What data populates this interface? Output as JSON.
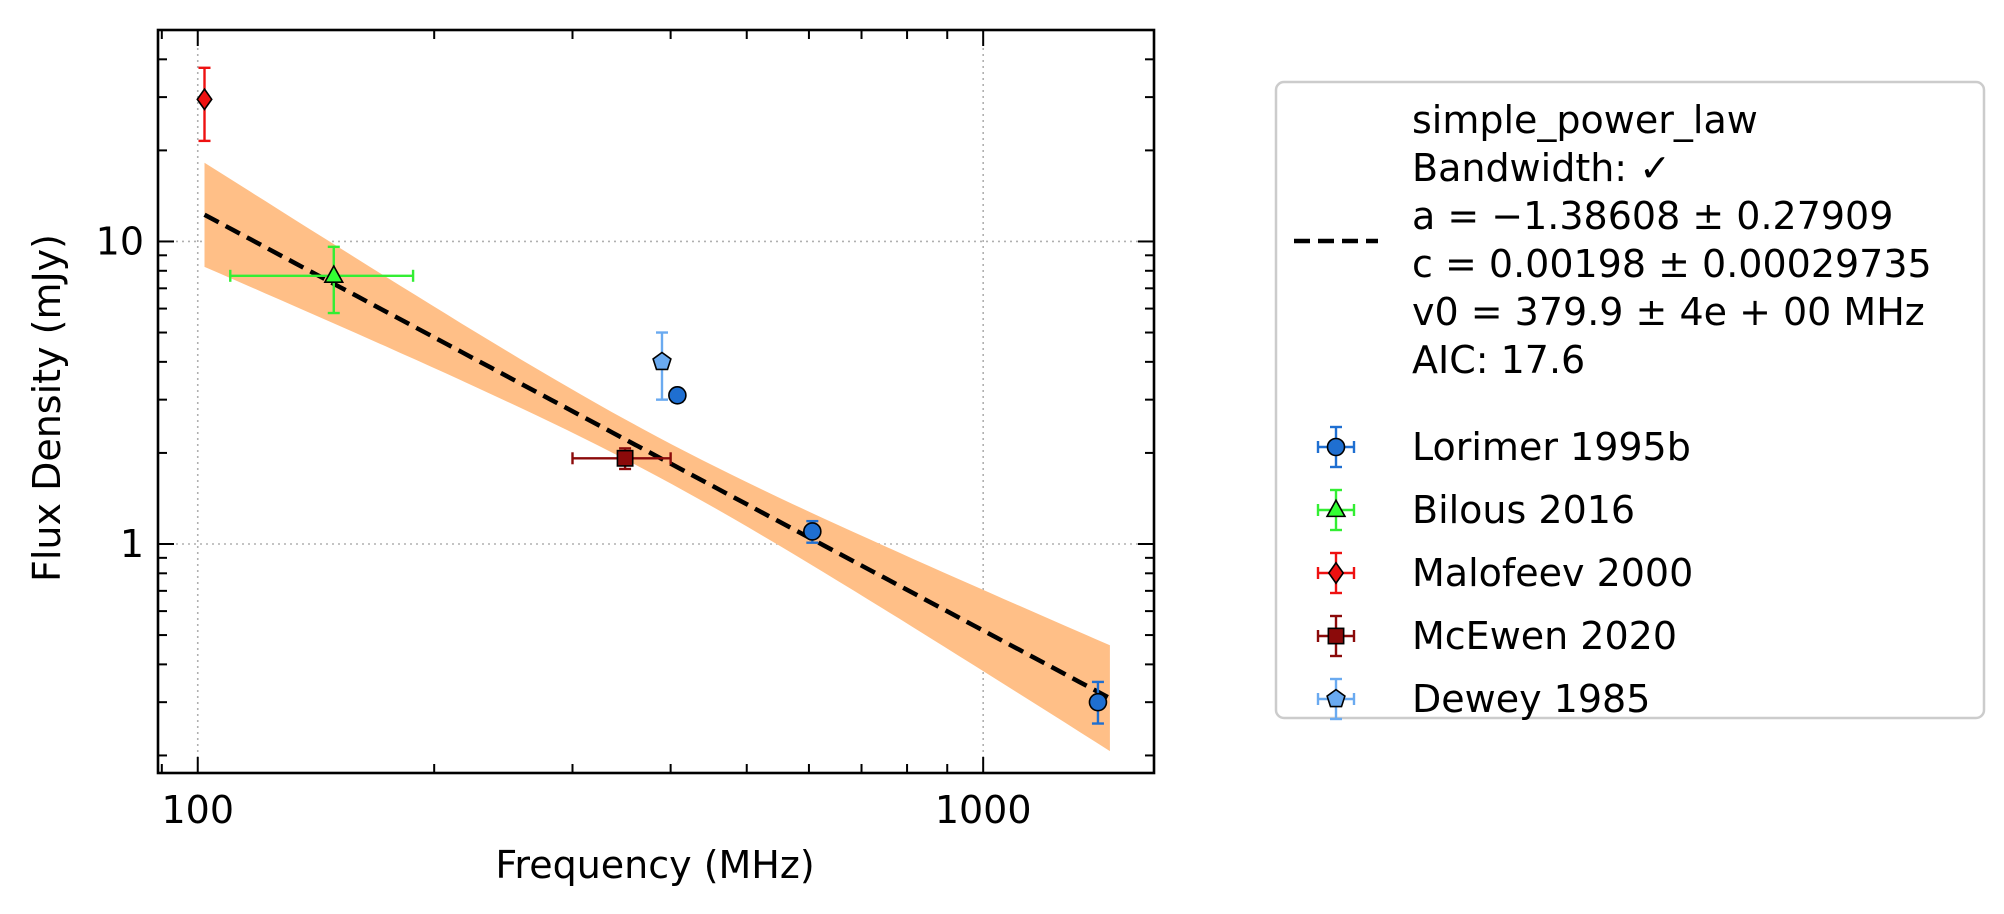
{
  "chart_data": {
    "type": "scatter",
    "xlabel": "Frequency (MHz)",
    "ylabel": "Flux Density (mJy)",
    "xscale": "log",
    "yscale": "log",
    "xlim": [
      89,
      1650
    ],
    "ylim": [
      0.175,
      50
    ],
    "xticks": [
      {
        "value": 100,
        "label": "100"
      },
      {
        "value": 1000,
        "label": "1000"
      }
    ],
    "yticks": [
      {
        "value": 1,
        "label": "1"
      },
      {
        "value": 10,
        "label": "10"
      }
    ],
    "grid": true,
    "legend_position": "outside-right",
    "fit": {
      "label_lines": [
        "simple_power_law",
        "Bandwidth: ✓",
        "a = −1.38608 ± 0.27909",
        "c = 0.00198 ± 0.00029735",
        "v0 = 379.9 ± 4e + 00 MHz",
        "AIC: 17.6"
      ],
      "a": -1.38608,
      "a_err": 0.27909,
      "c": 0.00198,
      "c_err": 0.00029735,
      "v0": 379.9,
      "x_range": [
        102,
        1450
      ],
      "line_color": "#000000",
      "band_color": "#ffbf87"
    },
    "series": [
      {
        "name": "Lorimer 1995b",
        "marker": "circle",
        "color": "#1f6fd1",
        "ecolor": "#1f6fd1",
        "points": [
          {
            "x": 408,
            "y": 3.1,
            "yerr": [
              0.15,
              0.15
            ],
            "xerr": [
              3,
              3
            ]
          },
          {
            "x": 606,
            "y": 1.1,
            "yerr": [
              0.09,
              0.09
            ],
            "xerr": [
              3,
              3
            ]
          },
          {
            "x": 1400,
            "y": 0.3,
            "yerr": [
              0.045,
              0.05
            ],
            "xerr": [
              4,
              4
            ]
          }
        ]
      },
      {
        "name": "Bilous 2016",
        "marker": "triangle",
        "color": "#33ff33",
        "ecolor": "#33ee33",
        "points": [
          {
            "x": 149,
            "y": 7.7,
            "yerr": [
              1.9,
              1.9
            ],
            "xerr": [
              39,
              39
            ]
          }
        ]
      },
      {
        "name": "Malofeev 2000",
        "marker": "diamond",
        "color": "#ee1111",
        "ecolor": "#ee1111",
        "points": [
          {
            "x": 102,
            "y": 29.5,
            "yerr": [
              8,
              8
            ],
            "xerr": [
              0.5,
              0.5
            ]
          }
        ]
      },
      {
        "name": "McEwen 2020",
        "marker": "square",
        "color": "#8b0a0a",
        "ecolor": "#8b0a0a",
        "points": [
          {
            "x": 350,
            "y": 1.92,
            "yerr": [
              0.15,
              0.15
            ],
            "xerr": [
              50,
              50
            ]
          }
        ]
      },
      {
        "name": "Dewey 1985",
        "marker": "pentagon",
        "color": "#6aaaf0",
        "ecolor": "#6aaaf0",
        "points": [
          {
            "x": 390,
            "y": 4.0,
            "yerr": [
              1.0,
              1.0
            ],
            "xerr": [
              2,
              2
            ]
          }
        ]
      }
    ]
  }
}
